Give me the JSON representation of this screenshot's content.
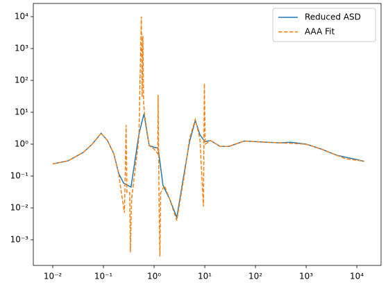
{
  "chart_data": {
    "type": "line",
    "xscale": "log",
    "yscale": "log",
    "legend": "upper right",
    "xlim": [
      0.00413,
      30100
    ],
    "ylim": [
      0.000157,
      25900
    ],
    "xticks": [
      {
        "value": 0.01,
        "label": "10⁻²"
      },
      {
        "value": 0.1,
        "label": "10⁻¹"
      },
      {
        "value": 1,
        "label": "10⁰"
      },
      {
        "value": 10,
        "label": "10¹"
      },
      {
        "value": 100,
        "label": "10²"
      },
      {
        "value": 1000,
        "label": "10³"
      },
      {
        "value": 10000,
        "label": "10⁴"
      }
    ],
    "yticks": [
      {
        "value": 0.001,
        "label": "10⁻³"
      },
      {
        "value": 0.01,
        "label": "10⁻²"
      },
      {
        "value": 0.1,
        "label": "10⁻¹"
      },
      {
        "value": 1,
        "label": "10⁰"
      },
      {
        "value": 10,
        "label": "10¹"
      },
      {
        "value": 100,
        "label": "10²"
      },
      {
        "value": 1000,
        "label": "10³"
      },
      {
        "value": 10000,
        "label": "10⁴"
      }
    ],
    "series": [
      {
        "name": "Reduced ASD",
        "color": "#1f77b4",
        "dash": "solid",
        "x": [
          0.01,
          0.02,
          0.04,
          0.06,
          0.09,
          0.12,
          0.16,
          0.2,
          0.25,
          0.35,
          0.5,
          0.63,
          0.8,
          1.0,
          1.2,
          1.5,
          2,
          2.8,
          4,
          5,
          6.5,
          8,
          10,
          13,
          20,
          30,
          60,
          100,
          300,
          500,
          1000,
          2000,
          4000,
          14000
        ],
        "values": [
          0.24,
          0.3,
          0.55,
          1.0,
          2.2,
          1.3,
          0.5,
          0.12,
          0.06,
          0.045,
          2,
          9,
          0.9,
          0.8,
          0.75,
          0.05,
          0.02,
          0.005,
          0.15,
          1.2,
          5.5,
          2,
          1.2,
          1.3,
          0.85,
          0.85,
          1.25,
          1.2,
          1.1,
          1.15,
          1.0,
          0.7,
          0.45,
          0.29
        ]
      },
      {
        "name": "AAA Fit",
        "color": "#ff7f0e",
        "dash": "dashed",
        "x": [
          0.01,
          0.02,
          0.04,
          0.06,
          0.09,
          0.12,
          0.16,
          0.2,
          0.22,
          0.26,
          0.28,
          0.29,
          0.33,
          0.34,
          0.36,
          0.5,
          0.56,
          0.58,
          0.6,
          0.62,
          0.65,
          0.8,
          1.0,
          1.18,
          1.2,
          1.25,
          1.3,
          1.35,
          1.6,
          2,
          2.8,
          4,
          5,
          6.5,
          8,
          9.4,
          9.8,
          10.2,
          13,
          20,
          30,
          60,
          100,
          300,
          1000,
          2000,
          4000,
          6000,
          14000
        ],
        "values": [
          0.24,
          0.3,
          0.55,
          1.0,
          2.2,
          1.3,
          0.5,
          0.12,
          0.04,
          0.007,
          4,
          0.03,
          0.03,
          0.0004,
          0.02,
          1.5,
          10000,
          30,
          2500,
          20,
          8,
          0.9,
          0.7,
          0.5,
          35,
          0.02,
          0.0003,
          0.03,
          0.05,
          0.02,
          0.004,
          0.12,
          1.5,
          6,
          1.5,
          0.011,
          80,
          1.0,
          1.3,
          0.85,
          0.85,
          1.25,
          1.2,
          1.1,
          1.0,
          0.7,
          0.45,
          0.35,
          0.29
        ]
      }
    ]
  }
}
